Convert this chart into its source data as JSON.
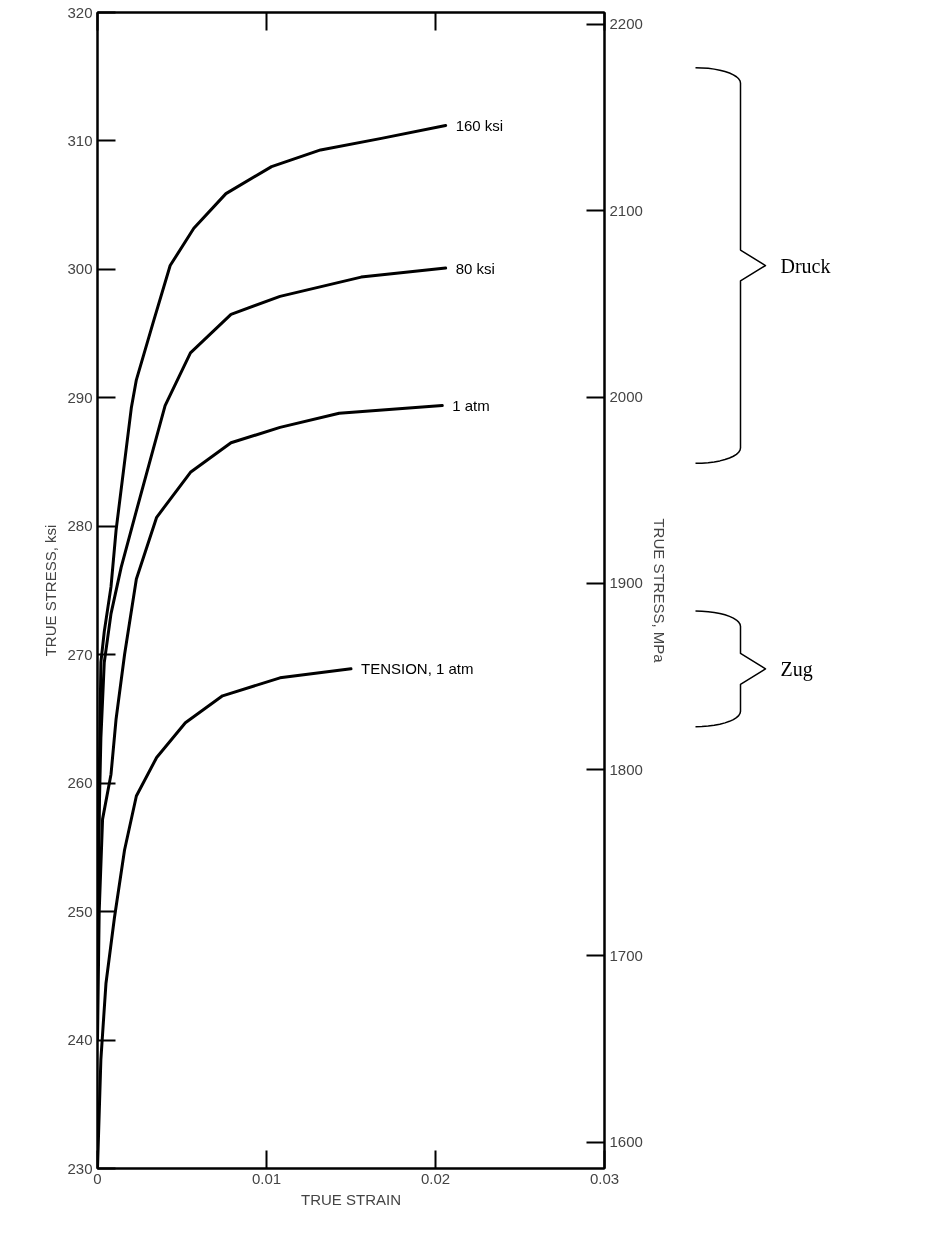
{
  "chart_data": {
    "type": "line",
    "xlabel": "TRUE STRAIN",
    "ylabel": "TRUE STRESS, ksi",
    "y2label": "TRUE STRESS, MPa",
    "xlim": [
      0,
      0.03
    ],
    "xticks": [
      0,
      0.01,
      0.02,
      0.03
    ],
    "ylim": [
      230,
      320
    ],
    "yticks": [
      230,
      240,
      250,
      260,
      270,
      280,
      290,
      300,
      310,
      320
    ],
    "y2lim": [
      1585.9,
      2206.4
    ],
    "y2ticks": [
      1600,
      1700,
      1800,
      1900,
      2000,
      2100,
      2200
    ],
    "grid": false,
    "legend": false,
    "marker": "none",
    "line_style": "solid",
    "series": [
      {
        "name": "160 ksi",
        "color": "#000000",
        "x": [
          0,
          0.0001,
          0.0002,
          0.0004,
          0.0008,
          0.0011,
          0.002,
          0.0023,
          0.0033,
          0.0043,
          0.0057,
          0.0076,
          0.0103,
          0.0132,
          0.0168,
          0.0206
        ],
        "values": [
          245,
          260,
          269.4,
          271.8,
          275.3,
          279.7,
          289.2,
          291.4,
          295.9,
          300.3,
          303.2,
          305.9,
          308.0,
          309.3,
          310.2,
          311.2
        ]
      },
      {
        "name": "80 ksi",
        "color": "#000000",
        "x": [
          0,
          0.0001,
          0.0002,
          0.0004,
          0.0008,
          0.0014,
          0.0023,
          0.004,
          0.0055,
          0.0079,
          0.0108,
          0.0156,
          0.0206
        ],
        "values": [
          245,
          257.6,
          263.5,
          269.4,
          273.2,
          276.8,
          281.2,
          289.4,
          293.5,
          296.5,
          297.9,
          299.4,
          300.1
        ]
      },
      {
        "name": "1 atm",
        "color": "#000000",
        "x": [
          0,
          0.0001,
          0.0003,
          0.0008,
          0.0011,
          0.0016,
          0.0023,
          0.0035,
          0.0055,
          0.0079,
          0.0108,
          0.0143,
          0.0204
        ],
        "values": [
          240,
          250,
          257.2,
          260.7,
          265.0,
          270.0,
          275.9,
          280.7,
          284.2,
          286.5,
          287.7,
          288.8,
          289.4
        ]
      },
      {
        "name": "TENSION, 1 atm",
        "color": "#000000",
        "x": [
          0,
          0.0002,
          0.0005,
          0.001,
          0.0016,
          0.0023,
          0.0035,
          0.0052,
          0.0074,
          0.0108,
          0.015
        ],
        "values": [
          230,
          238.5,
          244.4,
          249.5,
          254.8,
          259.0,
          262.0,
          264.7,
          266.8,
          268.2,
          268.9
        ]
      }
    ],
    "annotations": [
      "Druck",
      "Zug"
    ]
  }
}
